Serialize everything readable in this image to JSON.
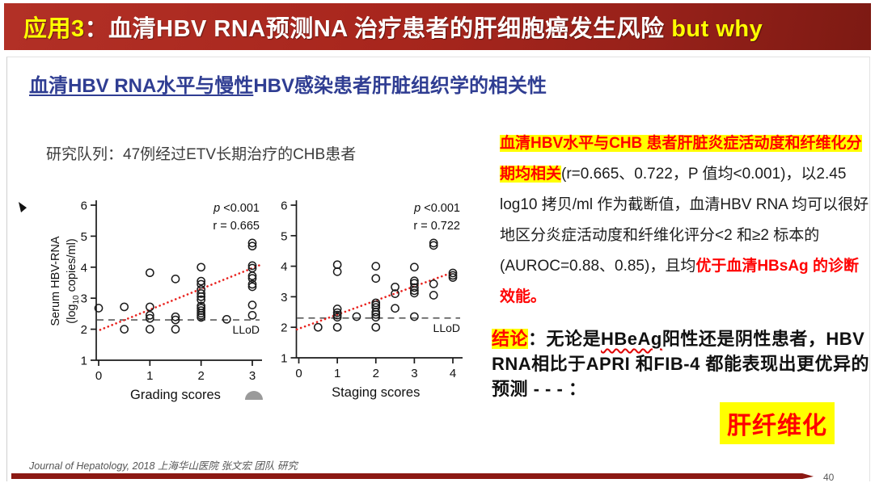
{
  "colors": {
    "header_red": "#A8261D",
    "accent_yellow": "#FFFF00",
    "subtitle_blue": "#2F3D92",
    "highlight_red": "#FF0000",
    "trend_red": "#E8211D",
    "footer_bar_maroon": "#8C1913"
  },
  "header": {
    "segments": [
      {
        "text": "应用3",
        "style": "y"
      },
      {
        "text": "：血清HBV RNA预测NA 治疗患者的肝细胞癌发生风险 ",
        "style": "w"
      },
      {
        "text": "but why",
        "style": "y"
      }
    ]
  },
  "subtitle": {
    "underlined": "血清HBV RNA水平与慢性",
    "rest": "HBV感染患者肝脏组织学的相关性"
  },
  "cohort": "研究队列：47例经过ETV长期治疗的CHB患者",
  "ylabel_parts": {
    "l1": "Serum HBV-RNA",
    "l2a": "(log",
    "l2sub": "10",
    "l2b": " copies/ml)"
  },
  "chart_data": [
    {
      "type": "scatter",
      "title": "",
      "xlabel": "Grading scores",
      "ylabel": "Serum HBV-RNA (log10 copies/ml)",
      "xlim": [
        0,
        3
      ],
      "ylim": [
        1,
        6
      ],
      "xticks": [
        0,
        1,
        2,
        3
      ],
      "yticks": [
        1,
        2,
        3,
        4,
        5,
        6
      ],
      "grid": false,
      "annotation": {
        "line1_italic": "p",
        "line1_rest": " <0.001",
        "line2": "r = 0.665"
      },
      "llod": {
        "y": 2.3,
        "label": "LLoD"
      },
      "trend": {
        "x1": 0.03,
        "y1": 1.98,
        "x2": 3.15,
        "y2": 4.07
      },
      "points": [
        [
          0,
          2.68
        ],
        [
          0.5,
          2.72
        ],
        [
          0.5,
          2.0
        ],
        [
          1,
          3.82
        ],
        [
          1,
          2.72
        ],
        [
          1,
          2.45
        ],
        [
          1,
          2.35
        ],
        [
          1,
          2.0
        ],
        [
          1.5,
          3.62
        ],
        [
          1.5,
          2.4
        ],
        [
          1.5,
          2.3
        ],
        [
          1.5,
          2.0
        ],
        [
          2,
          4.0
        ],
        [
          2,
          3.55
        ],
        [
          2,
          3.45
        ],
        [
          2,
          3.28
        ],
        [
          2,
          3.15
        ],
        [
          2,
          3.05
        ],
        [
          2,
          2.95
        ],
        [
          2,
          2.75
        ],
        [
          2,
          2.68
        ],
        [
          2,
          2.6
        ],
        [
          2,
          2.52
        ],
        [
          2,
          2.45
        ],
        [
          2,
          2.38
        ],
        [
          2.5,
          2.32
        ],
        [
          3,
          4.78
        ],
        [
          3,
          4.68
        ],
        [
          3,
          4.05
        ],
        [
          3,
          3.97
        ],
        [
          3,
          3.72
        ],
        [
          3,
          3.64
        ],
        [
          3,
          3.45
        ],
        [
          3,
          3.37
        ],
        [
          3,
          2.78
        ],
        [
          3,
          2.45
        ]
      ]
    },
    {
      "type": "scatter",
      "title": "",
      "xlabel": "Staging scores",
      "ylabel": "",
      "xlim": [
        0,
        4
      ],
      "ylim": [
        1,
        6
      ],
      "xticks": [
        0,
        1,
        2,
        3,
        4
      ],
      "yticks": [
        1,
        2,
        3,
        4,
        5,
        6
      ],
      "grid": false,
      "annotation": {
        "line1_italic": "p",
        "line1_rest": " <0.001",
        "line2": "r = 0.722"
      },
      "llod": {
        "y": 2.3,
        "label": "LLoD"
      },
      "trend": {
        "x1": -0.05,
        "y1": 1.93,
        "x2": 4.0,
        "y2": 3.8
      },
      "points": [
        [
          0.5,
          2.0
        ],
        [
          1,
          4.05
        ],
        [
          1,
          3.82
        ],
        [
          1,
          2.6
        ],
        [
          1,
          2.48
        ],
        [
          1,
          2.4
        ],
        [
          1,
          2.33
        ],
        [
          1,
          2.0
        ],
        [
          1.5,
          2.35
        ],
        [
          2,
          4.0
        ],
        [
          2,
          3.6
        ],
        [
          2,
          2.8
        ],
        [
          2,
          2.73
        ],
        [
          2,
          2.65
        ],
        [
          2,
          2.5
        ],
        [
          2,
          2.42
        ],
        [
          2,
          2.33
        ],
        [
          2,
          2.0
        ],
        [
          2.5,
          3.32
        ],
        [
          2.5,
          3.1
        ],
        [
          2.5,
          2.62
        ],
        [
          3,
          3.97
        ],
        [
          3,
          3.52
        ],
        [
          3,
          3.44
        ],
        [
          3,
          3.3
        ],
        [
          3,
          3.2
        ],
        [
          3,
          3.12
        ],
        [
          3,
          2.35
        ],
        [
          3.5,
          4.76
        ],
        [
          3.5,
          4.68
        ],
        [
          3.5,
          3.42
        ],
        [
          3.5,
          3.05
        ],
        [
          4,
          3.78
        ],
        [
          4,
          3.7
        ],
        [
          4,
          3.63
        ]
      ]
    }
  ],
  "findings": {
    "segments": [
      {
        "text": "血清HBV水平与CHB 患者肝脏炎症活动度和纤维化分期均相关",
        "style": "hl"
      },
      {
        "text": "(r=0.665、0.722，P 值均<0.001)，以2.45 log10 拷贝/ml 作为截断值，血清HBV RNA 均可以很好地区分炎症活动度和纤维化评分<2 和≥2 标本的(AUROC=0.88、0.85)，且均",
        "style": "n"
      },
      {
        "text": "优于血清HBsAg 的诊断效能。",
        "style": "rb"
      }
    ]
  },
  "conclusion": {
    "segments": [
      {
        "text": "结论",
        "style": "hl"
      },
      {
        "text": "：无论是",
        "style": "b"
      },
      {
        "text": "HBeAg",
        "style": "bw"
      },
      {
        "text": "阳性还是阴性患者，HBV RNA相比于APRI 和FIB-4 都能表现出更优异的预测 - - - ：",
        "style": "b"
      }
    ],
    "highlight_term": "肝纤维化"
  },
  "footer": "Journal of Hepatology, 2018 上海华山医院 张文宏 团队 研究",
  "page_number": "40"
}
